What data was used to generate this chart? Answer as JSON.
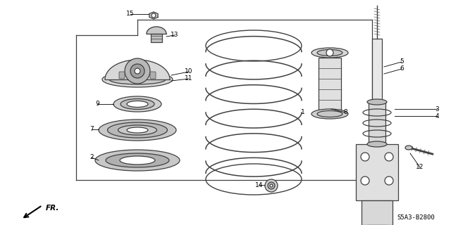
{
  "background_color": "#ffffff",
  "line_color": "#404040",
  "text_color": "#000000",
  "diagram_code": "S5A3-B2800",
  "figsize": [
    6.4,
    3.2
  ],
  "dpi": 100
}
